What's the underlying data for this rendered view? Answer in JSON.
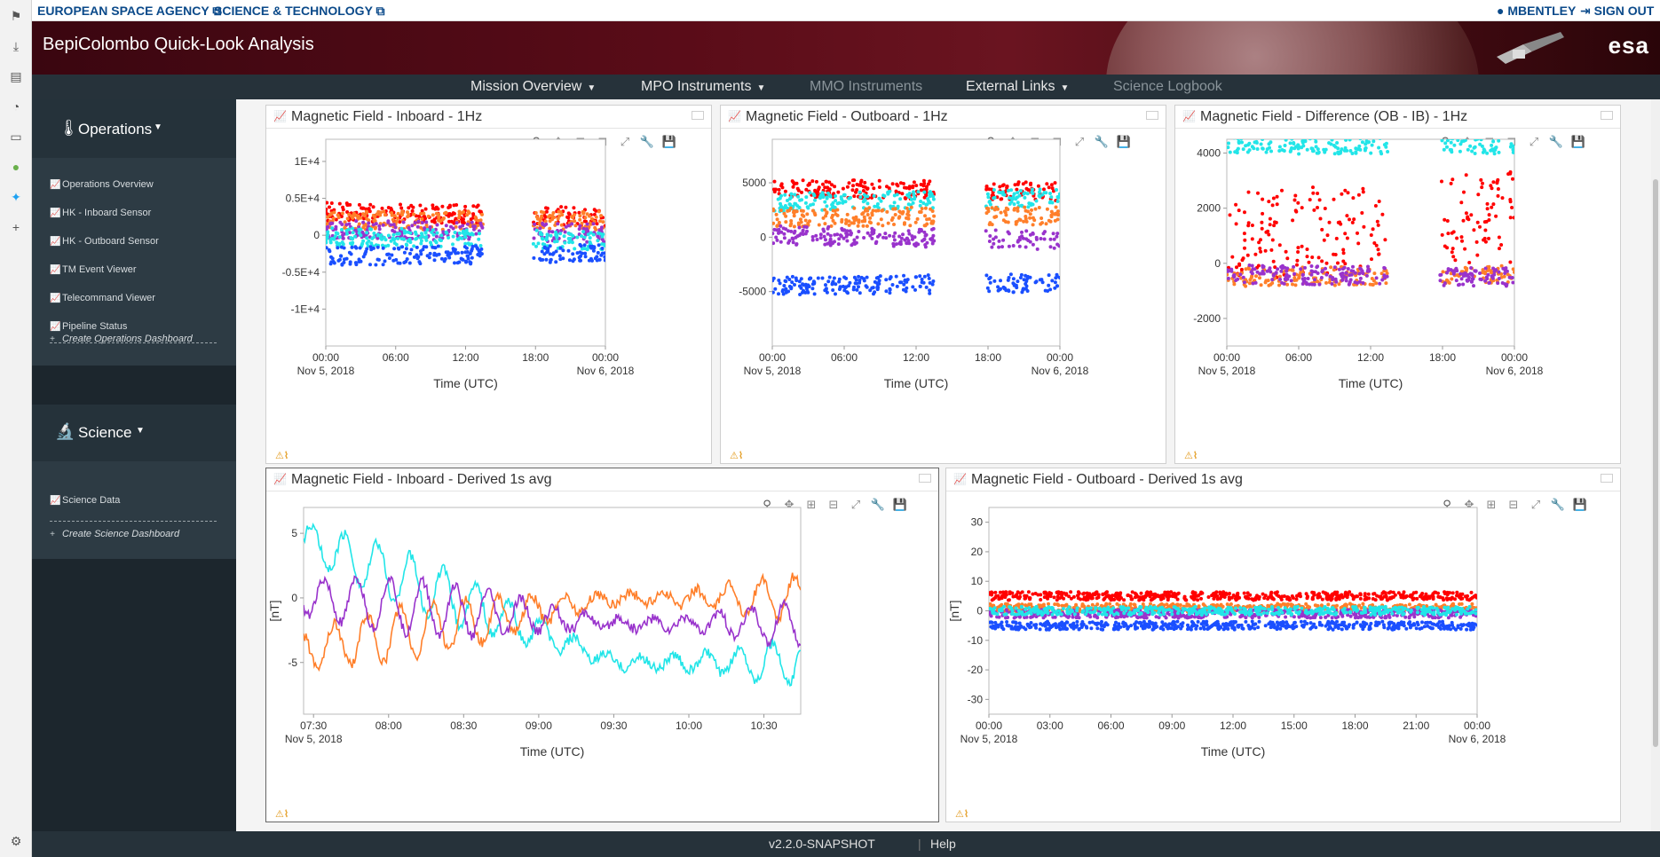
{
  "toplinks": {
    "esa": "EUROPEAN SPACE AGENCY",
    "scitech": "SCIENCE & TECHNOLOGY",
    "user": "MBENTLEY",
    "signout": "SIGN OUT"
  },
  "header": {
    "title": "BepiColombo Quick-Look Analysis",
    "logo": "esa"
  },
  "nav": {
    "mission": "Mission Overview",
    "mpo": "MPO Instruments",
    "mmo": "MMO Instruments",
    "external": "External Links",
    "logbook": "Science Logbook"
  },
  "sidebar": {
    "ops_title": "Operations",
    "ops_items": [
      "Operations Overview",
      "HK - Inboard Sensor",
      "HK - Outboard Sensor",
      "TM Event Viewer",
      "Telecommand Viewer",
      "Pipeline Status"
    ],
    "ops_create": "Create Operations Dashboard",
    "sci_title": "Science",
    "sci_items": [
      "Science Data"
    ],
    "sci_create": "Create Science Dashboard"
  },
  "panels": [
    {
      "title": "Magnetic Field - Inboard - 1Hz"
    },
    {
      "title": "Magnetic Field - Outboard - 1Hz"
    },
    {
      "title": "Magnetic Field - Difference (OB - IB) - 1Hz"
    },
    {
      "title": "Magnetic Field - Inboard - Derived 1s avg"
    },
    {
      "title": "Magnetic Field - Outboard - Derived 1s avg"
    }
  ],
  "footer": {
    "version": "v2.2.0-SNAPSHOT",
    "help": "Help"
  },
  "colors": {
    "red": "#ff0000",
    "orange": "#ff7f2a",
    "cyan": "#22e5e8",
    "purple": "#9933cc",
    "blue": "#1a4fff"
  },
  "chart_data": [
    {
      "type": "scatter",
      "title": "Magnetic Field - Inboard - 1Hz",
      "xlabel": "Time (UTC)",
      "x_ticks": [
        "00:00",
        "06:00",
        "12:00",
        "18:00",
        "00:00"
      ],
      "x_dates": [
        "Nov 5, 2018",
        "Nov 6, 2018"
      ],
      "y_ticks": [
        "1E+4",
        "0.5E+4",
        "0",
        "-0.5E+4",
        "-1E+4"
      ],
      "ylim": [
        -15000,
        13000
      ],
      "data_gap_hours": [
        13.5,
        17.8
      ],
      "series": [
        {
          "color": "#ff0000",
          "levels": [
            3200,
            2500
          ]
        },
        {
          "color": "#ff7f2a",
          "levels": [
            2000,
            2000
          ]
        },
        {
          "color": "#9933cc",
          "levels": [
            800,
            300
          ]
        },
        {
          "color": "#22e5e8",
          "levels": [
            -200,
            -700
          ]
        },
        {
          "color": "#1a4fff",
          "levels": [
            -2800,
            -2500
          ]
        }
      ]
    },
    {
      "type": "scatter",
      "title": "Magnetic Field - Outboard - 1Hz",
      "xlabel": "Time (UTC)",
      "x_ticks": [
        "00:00",
        "06:00",
        "12:00",
        "18:00",
        "00:00"
      ],
      "x_dates": [
        "Nov 5, 2018",
        "Nov 6, 2018"
      ],
      "y_ticks": [
        "5000",
        "0",
        "-5000"
      ],
      "ylim": [
        -10000,
        9000
      ],
      "data_gap_hours": [
        13.5,
        17.8
      ],
      "series": [
        {
          "color": "#ff0000",
          "levels": [
            4500,
            4200
          ]
        },
        {
          "color": "#22e5e8",
          "levels": [
            3200,
            3600
          ]
        },
        {
          "color": "#ff7f2a",
          "levels": [
            1800,
            2000
          ]
        },
        {
          "color": "#9933cc",
          "levels": [
            200,
            -300
          ]
        },
        {
          "color": "#1a4fff",
          "levels": [
            -4500,
            -4200
          ]
        }
      ]
    },
    {
      "type": "scatter",
      "title": "Magnetic Field - Difference (OB - IB) - 1Hz",
      "xlabel": "Time (UTC)",
      "x_ticks": [
        "00:00",
        "06:00",
        "12:00",
        "18:00",
        "00:00"
      ],
      "x_dates": [
        "Nov 5, 2018",
        "Nov 6, 2018"
      ],
      "y_ticks": [
        "4000",
        "2000",
        "0",
        "-2000"
      ],
      "ylim": [
        -3000,
        4500
      ],
      "data_gap_hours": [
        13.5,
        17.8
      ],
      "series": [
        {
          "color": "#22e5e8",
          "levels": [
            4300,
            4300
          ]
        },
        {
          "color": "#ff0000",
          "levels": [
            1000,
            1700
          ]
        },
        {
          "color": "#ff7f2a",
          "levels": [
            -500,
            -400
          ]
        },
        {
          "color": "#9933cc",
          "levels": [
            -400,
            -500
          ]
        }
      ]
    },
    {
      "type": "line",
      "title": "Magnetic Field - Inboard - Derived 1s avg",
      "xlabel": "Time (UTC)",
      "ylabel": "[nT]",
      "x_ticks": [
        "07:30",
        "08:00",
        "08:30",
        "09:00",
        "09:30",
        "10:00",
        "10:30"
      ],
      "x_dates": [
        "Nov 5, 2018"
      ],
      "y_ticks": [
        "5",
        "0",
        "-5"
      ],
      "ylim": [
        -9,
        7
      ],
      "series": [
        {
          "color": "#22e5e8",
          "levels": [
            4.5,
            -5
          ]
        },
        {
          "color": "#ff7f2a",
          "levels": [
            -4,
            0
          ]
        },
        {
          "color": "#9933cc",
          "levels": [
            0,
            -2
          ]
        }
      ]
    },
    {
      "type": "scatter",
      "title": "Magnetic Field - Outboard - Derived 1s avg",
      "xlabel": "Time (UTC)",
      "ylabel": "[nT]",
      "x_ticks": [
        "00:00",
        "03:00",
        "06:00",
        "09:00",
        "12:00",
        "15:00",
        "18:00",
        "21:00",
        "00:00"
      ],
      "x_dates": [
        "Nov 5, 2018",
        "Nov 6, 2018"
      ],
      "y_ticks": [
        "30",
        "20",
        "10",
        "0",
        "-10",
        "-20",
        "-30"
      ],
      "ylim": [
        -35,
        35
      ],
      "series": [
        {
          "color": "#ff0000",
          "levels": [
            5,
            5
          ]
        },
        {
          "color": "#ff7f2a",
          "levels": [
            1,
            1
          ]
        },
        {
          "color": "#9933cc",
          "levels": [
            -1,
            -1
          ]
        },
        {
          "color": "#22e5e8",
          "levels": [
            0,
            0
          ]
        },
        {
          "color": "#1a4fff",
          "levels": [
            -5,
            -5
          ]
        }
      ]
    }
  ]
}
